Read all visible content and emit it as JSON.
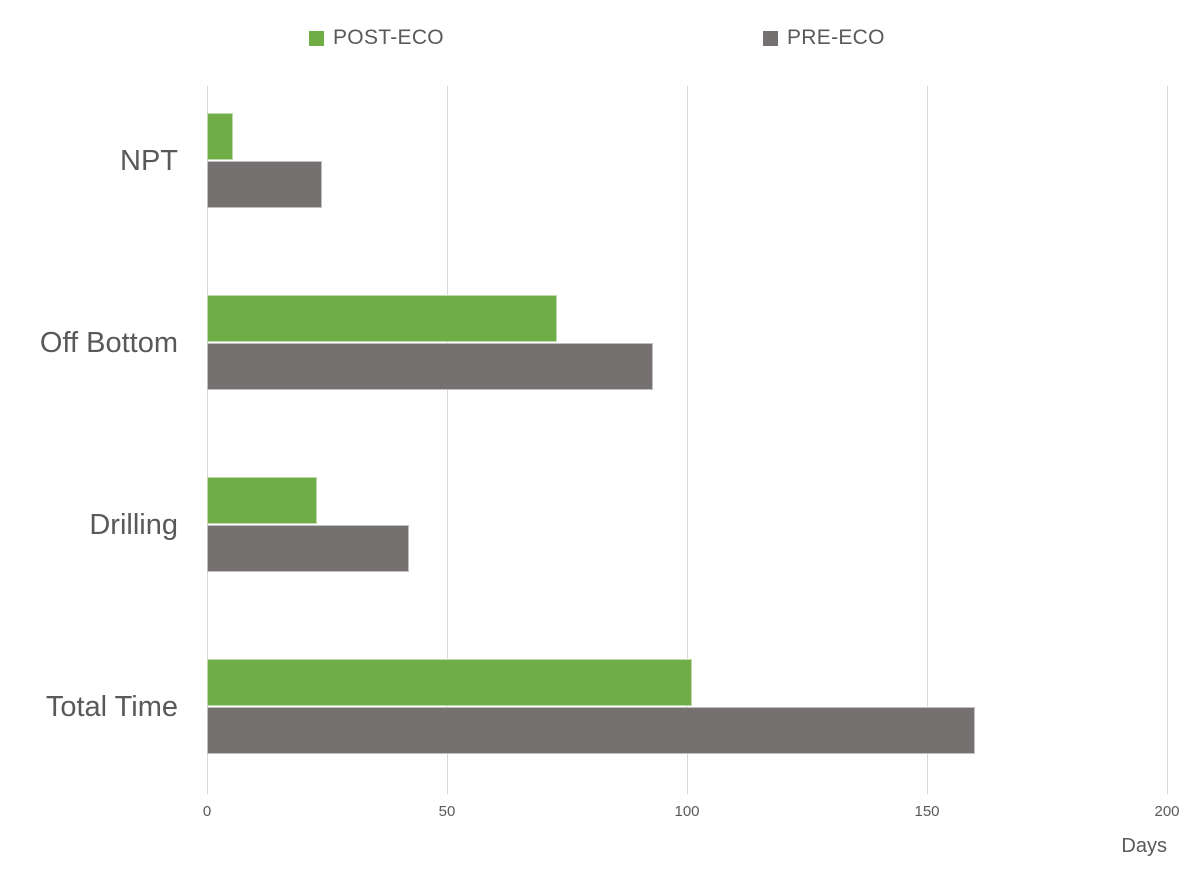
{
  "chart_data": {
    "type": "bar",
    "orientation": "horizontal",
    "categories": [
      "NPT",
      "Off Bottom",
      "Drilling",
      "Total Time"
    ],
    "series": [
      {
        "name": "POST-ECO",
        "color": "#70AD47",
        "values": [
          5.5,
          73,
          23,
          101
        ]
      },
      {
        "name": "PRE-ECO",
        "color": "#767171",
        "values": [
          24,
          93,
          42,
          160
        ]
      }
    ],
    "title": "",
    "xlabel": "Days",
    "ylabel": "",
    "xlim": [
      0,
      200
    ],
    "xticks": [
      0,
      50,
      100,
      150,
      200
    ],
    "grid": true,
    "legend_position": "top"
  },
  "legend": {
    "items": [
      {
        "label": "POST-ECO",
        "color": "#70AD47"
      },
      {
        "label": "PRE-ECO",
        "color": "#767171"
      }
    ]
  },
  "axis": {
    "tick_labels": [
      "0",
      "50",
      "100",
      "150",
      "200"
    ],
    "title": "Days"
  },
  "colors": {
    "post_eco_green": "#70AD47",
    "pre_eco_gray": "#767171",
    "text_gray": "#595959",
    "gridline": "#D9D9D9",
    "background": "#FFFFFF"
  }
}
